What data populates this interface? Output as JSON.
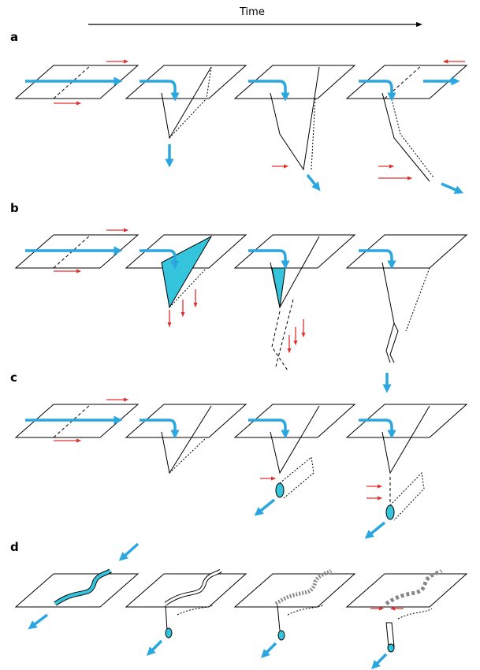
{
  "header": {
    "time_label": "Time"
  },
  "rows": [
    {
      "label": "a"
    },
    {
      "label": "b"
    },
    {
      "label": "c"
    },
    {
      "label": "d"
    }
  ],
  "colors": {
    "flow_arrow": "#2aa6e0",
    "force_arrow": "#e03030",
    "fill": "#34c4dc",
    "line": "#000000"
  }
}
